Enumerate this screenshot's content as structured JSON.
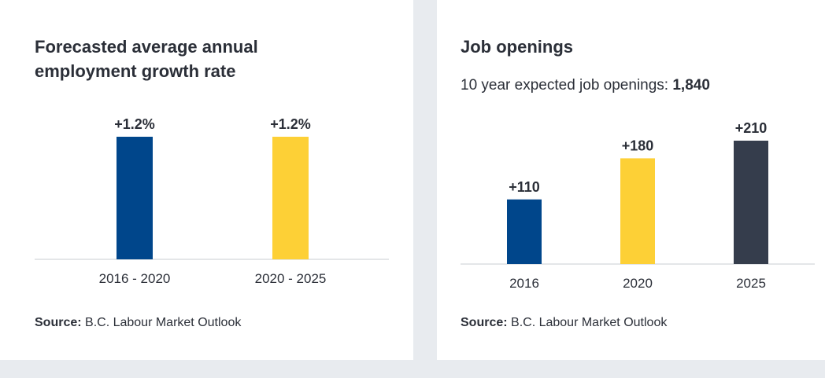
{
  "left_panel": {
    "title": "Forecasted average annual employment growth rate",
    "source_label": "Source:",
    "source_text": " B.C. Labour Market Outlook"
  },
  "right_panel": {
    "title": "Job openings",
    "subtitle_text": "10 year expected job openings: ",
    "subtitle_value": "1,840",
    "source_label": "Source:",
    "source_text": " B.C. Labour Market Outlook"
  },
  "chart_data": [
    {
      "type": "bar",
      "title": "Forecasted average annual employment growth rate",
      "categories": [
        "2016 - 2020",
        "2020 - 2025"
      ],
      "values": [
        1.2,
        1.2
      ],
      "data_labels": [
        "+1.2%",
        "+1.2%"
      ],
      "colors": [
        "#00468b",
        "#fdd036"
      ],
      "unit": "%",
      "grid": false,
      "legend": "none"
    },
    {
      "type": "bar",
      "title": "Job openings",
      "categories": [
        "2016",
        "2020",
        "2025"
      ],
      "values": [
        110,
        180,
        210
      ],
      "data_labels": [
        "+110",
        "+180",
        "+210"
      ],
      "colors": [
        "#00468b",
        "#fdd036",
        "#353d4c"
      ],
      "grid": false,
      "legend": "none"
    }
  ]
}
